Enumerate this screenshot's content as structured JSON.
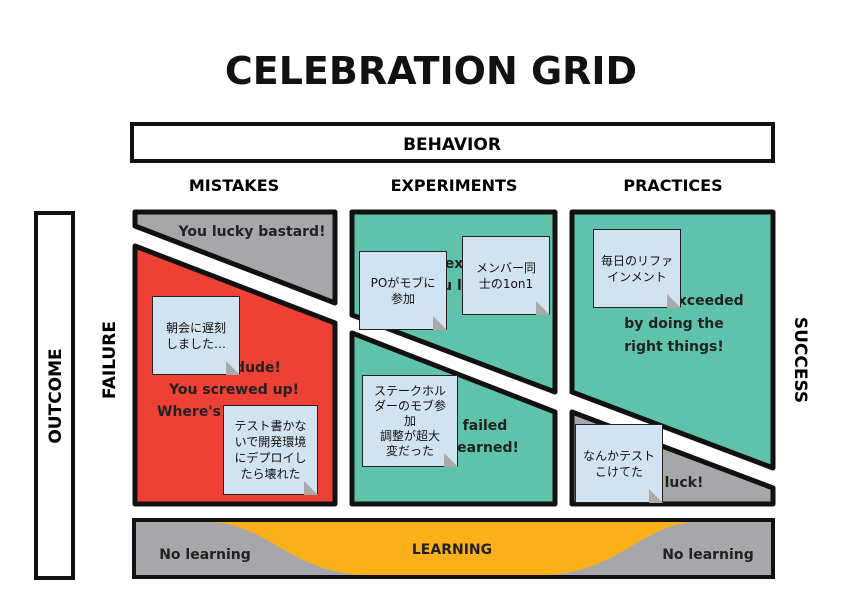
{
  "title": "CELEBRATION GRID",
  "behavior_label": "BEHAVIOR",
  "columns": [
    "MISTAKES",
    "EXPERIMENTS",
    "PRACTICES"
  ],
  "outcome_label": "OUTCOME",
  "failure_label": "FAILURE",
  "success_label": "SUCCESS",
  "cells": {
    "mistakes_success": "You lucky bastard!",
    "mistakes_failure": [
      "dude!",
      "You screwed up!",
      "Where's"
    ],
    "experiments_success": [
      "ex",
      "u l"
    ],
    "experiments_failure": [
      "failed",
      "earned!"
    ],
    "practices_success": [
      "exceeded",
      "by doing the",
      "right things!"
    ],
    "practices_failure": "luck!"
  },
  "learning": {
    "center": "LEARNING",
    "left": "No learning",
    "right": "No learning"
  },
  "stickies": [
    "朝会に遅刻\nしました…",
    "テスト書かな\nいで開発環境\nにデプロイし\nたら壊れた",
    "POがモブに\n参加",
    "メンバー同\n士の1on1",
    "毎日のリファ\nインメント",
    "ステークホル\nダーのモブ参\n加\n調整が超大\n変だった",
    "なんかテスト\nこけてた"
  ],
  "colors": {
    "red": "#ee4035",
    "teal": "#5fc2ab",
    "gray": "#a7a7ab",
    "orange": "#fbb01a",
    "sticky": "#d1e2f1"
  }
}
